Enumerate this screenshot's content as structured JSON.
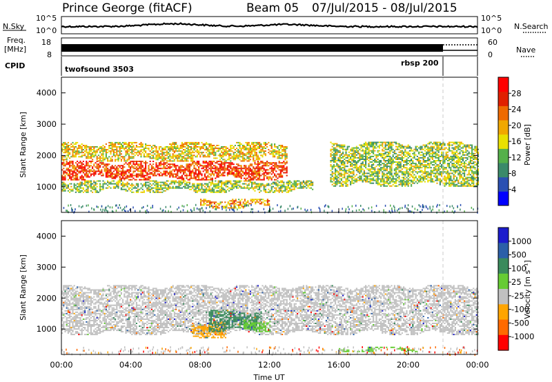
{
  "header": {
    "station": "Prince George (fitACF)",
    "beam": "Beam 05",
    "dates": "07/Jul/2015 - 08/Jul/2015"
  },
  "strip_panels": {
    "nsky": {
      "left_label": "N.Sky",
      "ticks": [
        "10^5",
        "10^0"
      ],
      "right_ticks": [
        "10^5",
        "10^0"
      ],
      "right_label": "N.Search"
    },
    "freq": {
      "left_label_line1": "Freq.",
      "left_label_line2": "[MHz]",
      "ticks": [
        "18",
        "8"
      ],
      "right_ticks": [
        "60",
        "0"
      ],
      "right_label": "Nave"
    },
    "cpid": {
      "label": "CPID",
      "modes": [
        "twofsound 3503",
        "rbsp 200"
      ],
      "mode_switch_hour": 22
    }
  },
  "colors": {
    "power_scale": [
      "#0000ff",
      "#2b50b2",
      "#3b8a6a",
      "#55b04a",
      "#e8e000",
      "#f0a800",
      "#ee6a00",
      "#e02000",
      "#ff0000"
    ],
    "velocity_scale": [
      "#1c1ccc",
      "#2b5fa8",
      "#3a8a5c",
      "#66cc33",
      "#c0c0c0",
      "#ffa500",
      "#ff6a00",
      "#ff0000"
    ]
  },
  "chart_data": [
    {
      "type": "heatmap",
      "name": "power",
      "ylabel": "Slant Range [km]",
      "xlim_hours": [
        0,
        24
      ],
      "ylim": [
        180,
        4500
      ],
      "yticks": [
        "1000",
        "2000",
        "3000",
        "4000"
      ],
      "colorbar_label": "Power [dB]",
      "colorbar_ticks": [
        "4",
        "8",
        "12",
        "16",
        "20",
        "24",
        "28"
      ],
      "colorbar_range": [
        0,
        32
      ],
      "echo_bands_approx": [
        {
          "hours": [
            0,
            13
          ],
          "range_km": [
            1200,
            1800
          ],
          "power_db": 26
        },
        {
          "hours": [
            0,
            13
          ],
          "range_km": [
            1800,
            2400
          ],
          "power_db": 18
        },
        {
          "hours": [
            0,
            14.5
          ],
          "range_km": [
            800,
            1200
          ],
          "power_db": 14
        },
        {
          "hours": [
            8,
            12
          ],
          "range_km": [
            300,
            600
          ],
          "power_db": 20
        },
        {
          "hours": [
            15.5,
            24
          ],
          "range_km": [
            1000,
            2400
          ],
          "power_db": 14
        }
      ]
    },
    {
      "type": "heatmap",
      "name": "velocity",
      "ylabel": "Slant Range [km]",
      "xlabel": "Time UT",
      "xlim_hours": [
        0,
        24
      ],
      "xticks": [
        "00:00",
        "04:00",
        "08:00",
        "12:00",
        "16:00",
        "20:00",
        "00:00"
      ],
      "ylim": [
        180,
        4500
      ],
      "yticks": [
        "1000",
        "2000",
        "3000",
        "4000"
      ],
      "colorbar_label": "Velocity [m s⁻¹]",
      "colorbar_ticks": [
        "1000",
        "500",
        "100",
        "25",
        "-25",
        "-100",
        "-500",
        "-1000"
      ],
      "echo_bands_approx": [
        {
          "hours": [
            0,
            24
          ],
          "range_km": [
            800,
            2400
          ],
          "velocity_ms": 0
        },
        {
          "hours": [
            7.5,
            9.5
          ],
          "range_km": [
            700,
            1200
          ],
          "velocity_ms": -300
        },
        {
          "hours": [
            8.5,
            11.5
          ],
          "range_km": [
            900,
            1600
          ],
          "velocity_ms": 400
        },
        {
          "hours": [
            10.5,
            12
          ],
          "range_km": [
            900,
            1300
          ],
          "velocity_ms": 150
        },
        {
          "hours": [
            16,
            20.5
          ],
          "range_km": [
            250,
            400
          ],
          "velocity_ms": 150
        }
      ]
    }
  ]
}
